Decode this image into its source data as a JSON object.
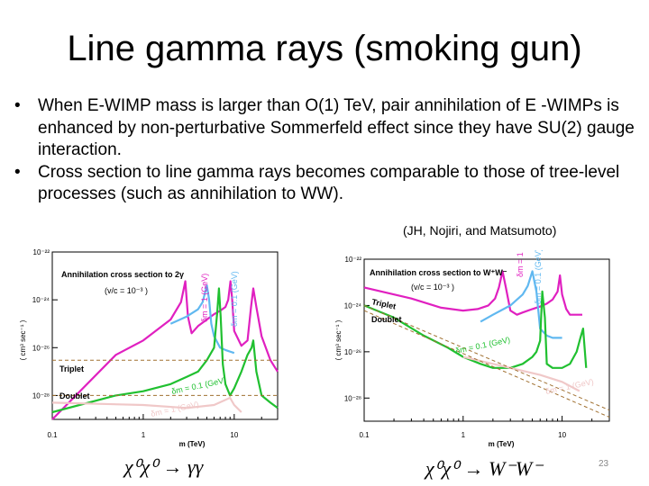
{
  "slide": {
    "title": "Line gamma rays (smoking gun)",
    "bullets": [
      "When E-WIMP mass is larger than O(1) TeV, pair annihilation of  E -WIMPs  is enhanced by non-perturbative Sommerfeld  effect since they have SU(2) gauge interaction.",
      "Cross section to line gamma rays becomes comparable to those of tree-level processes (such as annihilation to WW)."
    ],
    "citation": "(JH, Nojiri, and Matsumoto)",
    "page_number": "23"
  },
  "chart_data": [
    {
      "type": "line",
      "title": "Annihilation cross section to 2γ",
      "annotation": "(v/c = 10⁻³ )",
      "ylabel": "( cm³ sec⁻¹ )",
      "xlabel": "m (TeV)",
      "caption": "χ⁰χ⁰ → γγ",
      "x_scale": "log",
      "y_scale": "log",
      "xlim": [
        0.1,
        30
      ],
      "ylim": [
        1e-29,
        1e-22
      ],
      "x_ticks": [
        "0.1",
        "1",
        "10"
      ],
      "y_ticks": [
        "10⁻²²",
        "10⁻²⁴",
        "10⁻²⁶",
        "10⁻²⁸"
      ],
      "labels": [
        "Triplet",
        "Doublet",
        "δm = 0.1 (GeV)",
        "δm = 1 (GeV)",
        "δm = 0.1 (GeV)",
        "δm = 1 (GeV)"
      ],
      "series": [
        {
          "name": "Triplet δm = 0.1 (GeV)",
          "color": "#e020c0",
          "x": [
            0.1,
            0.5,
            1,
            2,
            2.6,
            2.9,
            3.1,
            3.4,
            4,
            5,
            6,
            7,
            8,
            8.6,
            9.1,
            9.5,
            10,
            12,
            14,
            15.3,
            16.2,
            17.5,
            20,
            25,
            30
          ],
          "y": [
            1e-29,
            5e-27,
            2e-26,
            1.5e-25,
            8e-25,
            6e-24,
            2e-25,
            4e-26,
            8e-26,
            1.5e-25,
            2.5e-25,
            3.5e-25,
            5e-25,
            1e-24,
            6e-24,
            1e-24,
            5e-26,
            1.2e-26,
            2e-26,
            5e-25,
            3e-24,
            5e-25,
            3e-26,
            3e-27,
            1e-27
          ]
        },
        {
          "name": "Triplet δm = 1 (GeV)",
          "color": "#60b8f0",
          "x": [
            2,
            3,
            4,
            4.5,
            5,
            5.3,
            5.6,
            6,
            7,
            8,
            10
          ],
          "y": [
            1e-25,
            2e-25,
            4e-25,
            8e-25,
            4e-24,
            1e-24,
            1e-25,
            3e-26,
            1e-26,
            8e-27,
            6e-27
          ]
        },
        {
          "name": "Doublet δm = 0.1 (GeV)",
          "color": "#20c030",
          "x": [
            0.1,
            0.5,
            1,
            2,
            3,
            4,
            5,
            6,
            6.5,
            6.8,
            7.1,
            7.5,
            8,
            9,
            10,
            12,
            14,
            15.5,
            16.2,
            17.5,
            20,
            25,
            30
          ],
          "y": [
            2e-29,
            1e-28,
            1.5e-28,
            3e-28,
            6e-28,
            1e-27,
            3e-27,
            1e-26,
            3e-25,
            3e-24,
            2e-25,
            2e-27,
            3e-28,
            1e-28,
            2e-28,
            1e-27,
            5e-27,
            1e-26,
            2e-26,
            1e-27,
            1e-28,
            5e-29,
            3e-29
          ]
        },
        {
          "name": "Doublet δm = 1 (GeV)",
          "color": "#f0c8c8",
          "x": [
            0.1,
            1,
            3,
            6,
            9,
            10,
            12
          ],
          "y": [
            5e-29,
            4e-29,
            3e-29,
            4e-29,
            8e-29,
            4e-29,
            2e-29
          ]
        },
        {
          "name": "Triplet (tree level)",
          "color": "#a07030",
          "style": "dashed",
          "x": [
            0.1,
            30
          ],
          "y": [
            3e-27,
            3e-27
          ]
        },
        {
          "name": "Doublet (tree level)",
          "color": "#a07030",
          "style": "dashed",
          "x": [
            0.1,
            30
          ],
          "y": [
            1e-28,
            1e-28
          ]
        }
      ]
    },
    {
      "type": "line",
      "title": "Annihilation cross section to W⁺W⁻",
      "annotation": "(v/c = 10⁻³ )",
      "ylabel": "( cm³ sec⁻¹ )",
      "xlabel": "m (TeV)",
      "caption": "χ⁰χ⁰ → W⁻W⁻",
      "x_scale": "log",
      "y_scale": "log",
      "xlim": [
        0.1,
        30
      ],
      "ylim": [
        1e-29,
        1e-22
      ],
      "x_ticks": [
        "0.1",
        "1",
        "10"
      ],
      "y_ticks": [
        "10⁻²²",
        "10⁻²⁴",
        "10⁻²⁶",
        "10⁻²⁸"
      ],
      "labels": [
        "Triplet",
        "Doublet",
        "δm = 0.1 (GeV)",
        "δm = 1 (GeV)",
        "δm = 0.1 (GeV)",
        "δm = 1 (GeV)"
      ],
      "series": [
        {
          "name": "Triplet δm = 0.1 (GeV)",
          "color": "#e020c0",
          "x": [
            0.1,
            0.3,
            0.6,
            1,
            1.4,
            1.8,
            2.1,
            2.3,
            2.5,
            2.7,
            3,
            3.5,
            4,
            5,
            6,
            7,
            8,
            9,
            9.5,
            10,
            11,
            12,
            14,
            16
          ],
          "y": [
            6e-24,
            2e-24,
            8e-25,
            6e-25,
            7e-25,
            1e-24,
            2e-24,
            6e-24,
            3e-23,
            6e-24,
            6e-25,
            4e-25,
            5e-25,
            7e-25,
            9e-25,
            1.2e-24,
            1.8e-24,
            4e-24,
            2e-23,
            3e-24,
            7e-25,
            4e-25,
            4e-25,
            4e-25
          ]
        },
        {
          "name": "Triplet δm = 1 (GeV)",
          "color": "#60b8f0",
          "x": [
            1.5,
            2,
            3,
            4,
            4.5,
            5,
            5.5,
            6,
            7,
            8,
            10
          ],
          "y": [
            2e-25,
            4e-25,
            1e-24,
            3e-24,
            7e-24,
            3e-23,
            4e-24,
            1e-25,
            5e-26,
            4e-26,
            4e-26
          ]
        },
        {
          "name": "Doublet δm = 0.1 (GeV)",
          "color": "#20c030",
          "x": [
            0.1,
            0.2,
            0.4,
            0.7,
            1,
            1.5,
            2,
            3,
            4,
            5,
            5.5,
            6,
            6.3,
            6.7,
            7,
            8,
            10,
            12,
            14,
            15.3,
            16.3,
            17.5
          ],
          "y": [
            1e-24,
            3e-25,
            5e-26,
            1.5e-26,
            6e-27,
            3e-27,
            2e-27,
            2e-27,
            3e-27,
            6e-27,
            1e-26,
            3e-26,
            4e-24,
            3e-25,
            3e-27,
            2e-27,
            2e-27,
            3e-27,
            1e-26,
            4e-26,
            1e-25,
            2e-27
          ]
        },
        {
          "name": "Doublet δm = 1 (GeV)",
          "color": "#f0c8c8",
          "x": [
            1,
            3,
            6,
            10,
            15
          ],
          "y": [
            6e-27,
            2e-27,
            1e-27,
            5e-28,
            2e-28
          ]
        },
        {
          "name": "Triplet (tree level)",
          "color": "#a07030",
          "style": "dashed",
          "x": [
            0.1,
            30
          ],
          "y": [
            1e-24,
            3e-29
          ]
        },
        {
          "name": "Doublet (tree level)",
          "color": "#a07030",
          "style": "dashed",
          "x": [
            0.1,
            30
          ],
          "y": [
            6e-25,
            1.5e-29
          ]
        }
      ]
    }
  ]
}
